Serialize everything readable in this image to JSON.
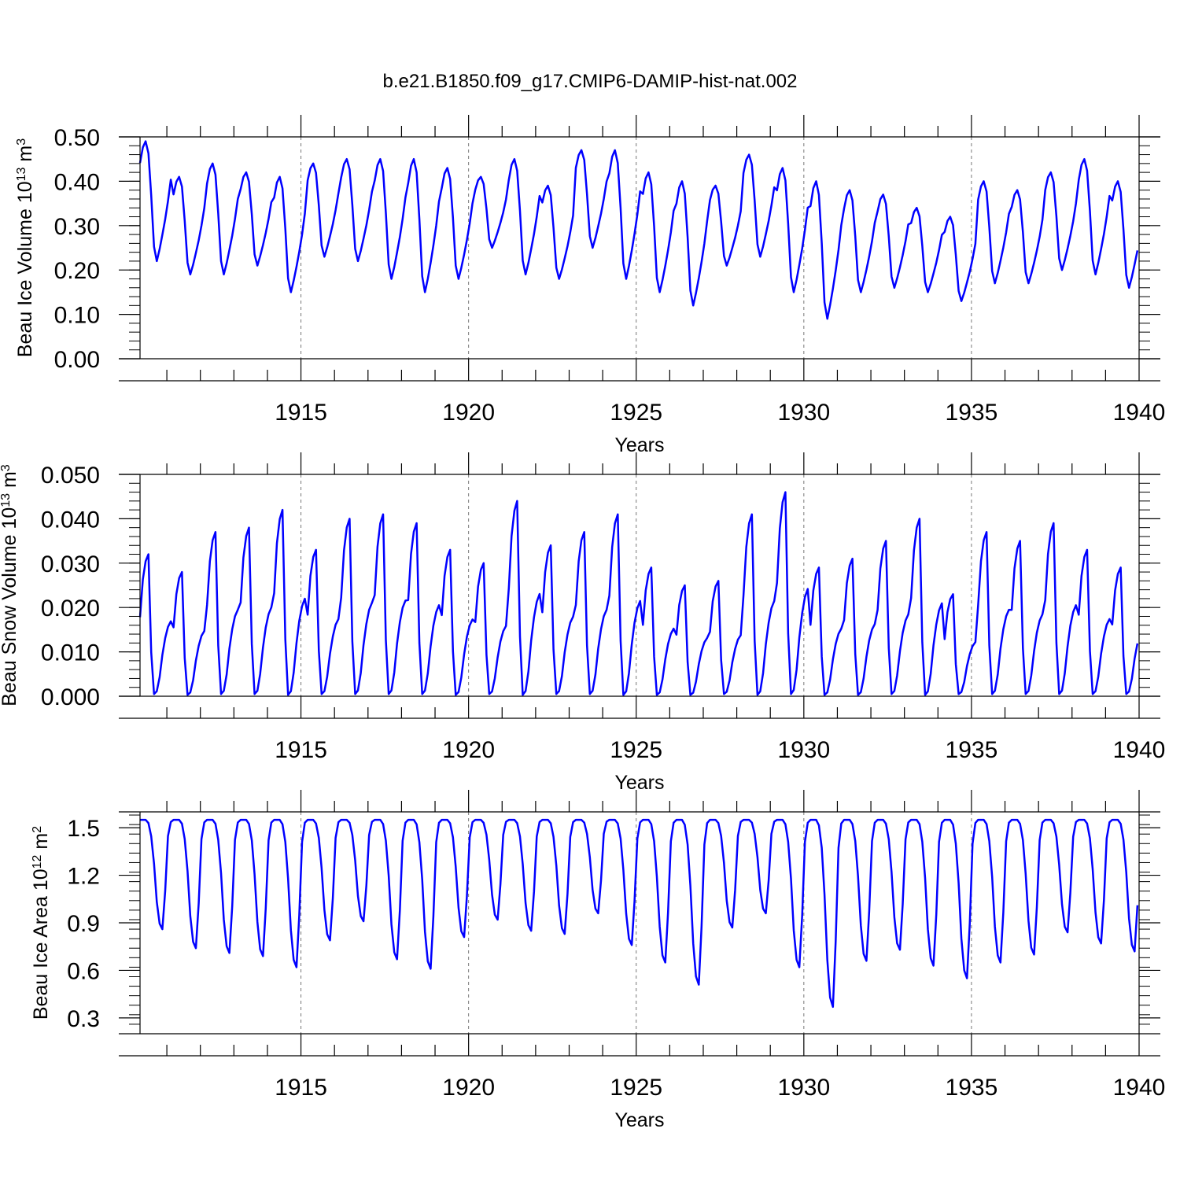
{
  "title": "b.e21.B1850.f09_g17.CMIP6-DAMIP-hist-nat.002",
  "colors": {
    "line": "#0000ff",
    "axis": "#000000",
    "grid": "#777777"
  },
  "chart_data": [
    {
      "type": "line",
      "name": "ice-volume",
      "ylabel_main": "Beau Ice Volume 10",
      "ylabel_exp": "13",
      "ylabel_unit": " m",
      "ylabel_unit_exp": "3",
      "xlabel": "Years",
      "ylim": [
        0,
        0.5
      ],
      "yticks": [
        "0.00",
        "0.10",
        "0.20",
        "0.30",
        "0.40",
        "0.50"
      ],
      "yvals": [
        0,
        0.1,
        0.2,
        0.3,
        0.4,
        0.5
      ],
      "xlim": [
        1910.2,
        1940
      ],
      "xticks": [
        1915,
        1920,
        1925,
        1930,
        1935,
        1940
      ],
      "xticklabels": [
        "1915",
        "1920",
        "1925",
        "1930",
        "1935",
        "1940"
      ],
      "grid": "vertical dashed at labeled years",
      "series": [
        {
          "start": 1910.2,
          "step": 0.0833333,
          "peaks": [
            0.49,
            0.41,
            0.44,
            0.42,
            0.41,
            0.44,
            0.45,
            0.45,
            0.45,
            0.43,
            0.41,
            0.45,
            0.39,
            0.47,
            0.47,
            0.42,
            0.4,
            0.39,
            0.46,
            0.43,
            0.4,
            0.38,
            0.37,
            0.34,
            0.32,
            0.4,
            0.38,
            0.42,
            0.45,
            0.4
          ],
          "troughs": [
            0.22,
            0.19,
            0.19,
            0.21,
            0.15,
            0.23,
            0.22,
            0.18,
            0.15,
            0.18,
            0.25,
            0.19,
            0.18,
            0.25,
            0.18,
            0.15,
            0.12,
            0.21,
            0.23,
            0.15,
            0.09,
            0.15,
            0.16,
            0.15,
            0.13,
            0.17,
            0.17,
            0.2,
            0.19,
            0.16
          ]
        }
      ]
    },
    {
      "type": "line",
      "name": "snow-volume",
      "ylabel_main": "Beau Snow Volume 10",
      "ylabel_exp": "13",
      "ylabel_unit": " m",
      "ylabel_unit_exp": "3",
      "xlabel": "Years",
      "ylim": [
        0,
        0.05
      ],
      "yticks": [
        "0.000",
        "0.010",
        "0.020",
        "0.030",
        "0.040",
        "0.050"
      ],
      "yvals": [
        0,
        0.01,
        0.02,
        0.03,
        0.04,
        0.05
      ],
      "xlim": [
        1910.2,
        1940
      ],
      "xticks": [
        1915,
        1920,
        1925,
        1930,
        1935,
        1940
      ],
      "xticklabels": [
        "1915",
        "1920",
        "1925",
        "1930",
        "1935",
        "1940"
      ],
      "grid": "vertical dashed at labeled years",
      "series": [
        {
          "start": 1910.2,
          "step": 0.0833333,
          "peaks": [
            0.032,
            0.028,
            0.037,
            0.038,
            0.042,
            0.033,
            0.04,
            0.041,
            0.039,
            0.033,
            0.03,
            0.044,
            0.034,
            0.037,
            0.041,
            0.029,
            0.025,
            0.026,
            0.041,
            0.046,
            0.029,
            0.031,
            0.035,
            0.04,
            0.023,
            0.037,
            0.035,
            0.039,
            0.033,
            0.029
          ],
          "troughs": [
            0.0005,
            0.0003,
            0.0005,
            0.0005,
            0.0003,
            0.0005,
            0.0005,
            0.0005,
            0.0005,
            0.0003,
            0.0005,
            0.0003,
            0.0005,
            0.0005,
            0.0003,
            0.0003,
            0.0003,
            0.0005,
            0.0003,
            0.0005,
            0.0003,
            0.0003,
            0.0005,
            0.0003,
            0.0005,
            0.0005,
            0.0005,
            0.0005,
            0.0005,
            0.0005
          ]
        }
      ]
    },
    {
      "type": "line",
      "name": "ice-area",
      "ylabel_main": "Beau Ice Area 10",
      "ylabel_exp": "12",
      "ylabel_unit": " m",
      "ylabel_unit_exp": "2",
      "xlabel": "Years",
      "ylim": [
        0.2,
        1.6
      ],
      "yticks": [
        "0.3",
        "0.6",
        "0.9",
        "1.2",
        "1.5"
      ],
      "yvals": [
        0.3,
        0.6,
        0.9,
        1.2,
        1.5
      ],
      "xlim": [
        1910.2,
        1940
      ],
      "xticks": [
        1915,
        1920,
        1925,
        1930,
        1935,
        1940
      ],
      "xticklabels": [
        "1915",
        "1920",
        "1925",
        "1930",
        "1935",
        "1940"
      ],
      "grid": "vertical dashed at labeled years",
      "series": [
        {
          "start": 1910.2,
          "step": 0.0833333,
          "peaks": [
            1.55,
            1.55,
            1.55,
            1.55,
            1.55,
            1.55,
            1.55,
            1.55,
            1.55,
            1.55,
            1.55,
            1.55,
            1.55,
            1.55,
            1.55,
            1.55,
            1.55,
            1.55,
            1.55,
            1.55,
            1.55,
            1.55,
            1.55,
            1.55,
            1.55,
            1.55,
            1.55,
            1.55,
            1.55,
            1.55
          ],
          "troughs": [
            0.86,
            0.74,
            0.71,
            0.69,
            0.62,
            0.79,
            0.91,
            0.67,
            0.61,
            0.81,
            0.92,
            0.85,
            0.83,
            0.96,
            0.76,
            0.65,
            0.51,
            0.87,
            0.96,
            0.62,
            0.37,
            0.66,
            0.73,
            0.63,
            0.55,
            0.65,
            0.7,
            0.84,
            0.77,
            0.72
          ]
        }
      ]
    }
  ]
}
